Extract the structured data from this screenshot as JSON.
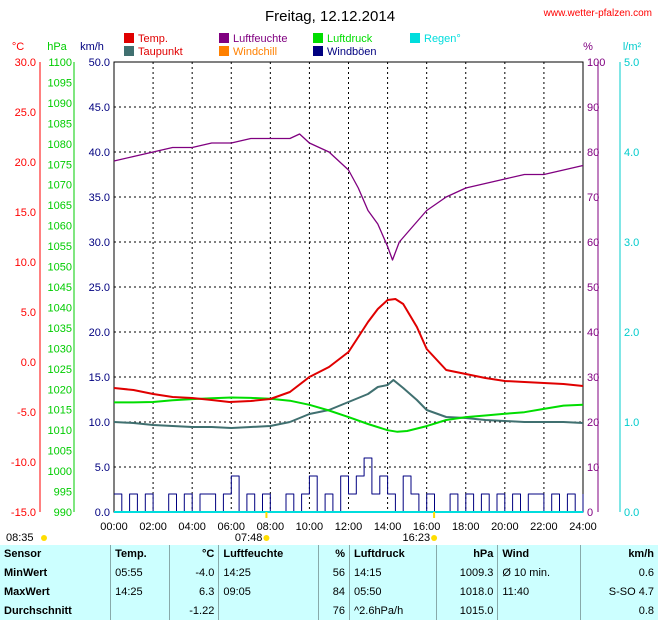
{
  "title": "Freitag, 12.12.2014",
  "site": "www.wetter-pfalzen.com",
  "colors": {
    "temp": "#e00000",
    "humidity": "#800080",
    "pressure": "#00dd00",
    "rain": "#00dddd",
    "dewpoint": "#407070",
    "windchill": "#ff8000",
    "gust": "#000080",
    "temp_axis": "#ff0000",
    "pressure_axis": "#00cc00",
    "speed_axis": "#000080",
    "hum_axis": "#800080",
    "rain_axis": "#00cccc"
  },
  "axes": {
    "temp_unit": "°C",
    "pressure_unit": "hPa",
    "speed_unit": "km/h",
    "hum_unit": "%",
    "rain_unit": "l/m²",
    "temp_ticks": [
      "30.0",
      "25.0",
      "20.0",
      "15.0",
      "10.0",
      "5.0",
      "0.0",
      "-5.0",
      "-10.0",
      "-15.0"
    ],
    "pressure_ticks": [
      "1100",
      "1095",
      "1090",
      "1085",
      "1080",
      "1075",
      "1070",
      "1065",
      "1060",
      "1055",
      "1050",
      "1045",
      "1040",
      "1035",
      "1030",
      "1025",
      "1020",
      "1015",
      "1010",
      "1005",
      "1000",
      "995",
      "990"
    ],
    "speed_ticks": [
      "50.0",
      "45.0",
      "40.0",
      "35.0",
      "30.0",
      "25.0",
      "20.0",
      "15.0",
      "10.0",
      "5.0",
      "0.0"
    ],
    "hum_ticks": [
      "100",
      "90",
      "80",
      "70",
      "60",
      "50",
      "40",
      "30",
      "20",
      "10",
      "0"
    ],
    "rain_ticks": [
      "5.0",
      "4.0",
      "3.0",
      "2.0",
      "1.0",
      "0.0"
    ],
    "time_ticks": [
      "00:00",
      "02:00",
      "04:00",
      "06:00",
      "08:00",
      "10:00",
      "12:00",
      "14:00",
      "16:00",
      "18:00",
      "20:00",
      "22:00",
      "24:00"
    ]
  },
  "legend": [
    {
      "label": "Temp.",
      "key": "temp"
    },
    {
      "label": "Luftfeuchte",
      "key": "humidity"
    },
    {
      "label": "Luftdruck",
      "key": "pressure"
    },
    {
      "label": "Regen°",
      "key": "rain"
    },
    {
      "label": "Taupunkt",
      "key": "dewpoint"
    },
    {
      "label": "Windchill",
      "key": "windchill"
    },
    {
      "label": "Windböen",
      "key": "gust"
    }
  ],
  "sun_markers": [
    {
      "time": "08:35",
      "hour": 8.58
    },
    {
      "time": "07:48",
      "hour": 7.8
    },
    {
      "time": "16:23",
      "hour": 16.38
    }
  ],
  "chart_data": {
    "type": "line",
    "x_unit": "hour",
    "xlim": [
      0,
      24
    ],
    "temp_ylim": [
      -15,
      30
    ],
    "pressure_ylim": [
      990,
      1100
    ],
    "speed_ylim": [
      0,
      50
    ],
    "humidity_ylim": [
      0,
      100
    ],
    "rain_ylim": [
      0,
      5
    ],
    "series": [
      {
        "name": "Temp.",
        "axis": "temp",
        "color_key": "temp",
        "x": [
          0,
          1,
          2,
          3,
          4,
          5,
          5.9,
          7,
          8,
          9,
          10,
          11,
          12,
          12.5,
          13,
          13.5,
          14,
          14.4,
          14.8,
          15.5,
          16,
          17,
          18,
          19,
          20,
          21,
          22,
          23,
          24
        ],
        "y": [
          -2.6,
          -2.8,
          -3.2,
          -3.5,
          -3.6,
          -3.8,
          -4.0,
          -3.9,
          -3.7,
          -3.0,
          -1.5,
          -0.5,
          1.0,
          2.5,
          4.0,
          5.3,
          6.2,
          6.3,
          5.8,
          3.5,
          1.3,
          -0.8,
          -1.2,
          -1.6,
          -1.9,
          -2.0,
          -2.1,
          -2.2,
          -2.4
        ]
      },
      {
        "name": "Taupunkt",
        "axis": "temp",
        "color_key": "dewpoint",
        "x": [
          0,
          1,
          2,
          3,
          4,
          5,
          6,
          7,
          8,
          9,
          10,
          11,
          12,
          13,
          13.5,
          14,
          14.3,
          14.8,
          15.5,
          16,
          17,
          18,
          19,
          20,
          21,
          22,
          23,
          24
        ],
        "y": [
          -6.0,
          -6.1,
          -6.3,
          -6.4,
          -6.5,
          -6.5,
          -6.6,
          -6.5,
          -6.4,
          -6.0,
          -5.2,
          -4.8,
          -4.0,
          -3.2,
          -2.5,
          -2.3,
          -1.8,
          -2.6,
          -3.8,
          -4.8,
          -5.5,
          -5.6,
          -5.8,
          -5.9,
          -6.0,
          -6.0,
          -6.0,
          -6.1
        ]
      },
      {
        "name": "Luftfeuchte",
        "axis": "humidity",
        "color_key": "humidity",
        "x": [
          0,
          1,
          2,
          3,
          4,
          5,
          6,
          7,
          8,
          9,
          9.5,
          10,
          11,
          12,
          12.5,
          13,
          13.5,
          14,
          14.25,
          14.6,
          15.2,
          16,
          17,
          18,
          19,
          20,
          21,
          22,
          23,
          24
        ],
        "y": [
          78,
          79,
          80,
          81,
          81,
          82,
          82,
          83,
          83,
          83,
          84,
          82,
          80,
          76,
          72,
          67,
          64,
          59,
          56,
          60,
          63,
          67,
          70,
          72,
          73,
          74,
          75,
          75,
          76,
          77
        ]
      },
      {
        "name": "Luftdruck",
        "axis": "pressure",
        "color_key": "pressure",
        "x": [
          0,
          1,
          2,
          3,
          4,
          5,
          6,
          7,
          8,
          9,
          10,
          11,
          12,
          13,
          14,
          14.5,
          15,
          16,
          17,
          18,
          19,
          20,
          21,
          22,
          23,
          24
        ],
        "y": [
          1016.8,
          1016.8,
          1016.9,
          1017.3,
          1017.6,
          1017.8,
          1018.0,
          1017.9,
          1017.7,
          1017.2,
          1016.2,
          1014.8,
          1013.2,
          1011.5,
          1010.0,
          1009.6,
          1009.8,
          1011.0,
          1012.5,
          1013.2,
          1013.6,
          1014.0,
          1014.4,
          1015.2,
          1016.0,
          1016.2
        ]
      },
      {
        "name": "Windböen",
        "axis": "speed",
        "color_key": "gust",
        "x": [
          0,
          0.4,
          0.8,
          1.2,
          1.6,
          2,
          2.4,
          2.8,
          3.2,
          3.6,
          4,
          4.4,
          4.8,
          5.2,
          5.6,
          6,
          6.4,
          6.8,
          7.2,
          7.6,
          8,
          8.4,
          8.8,
          9.2,
          9.6,
          10,
          10.4,
          10.8,
          11.2,
          11.6,
          12,
          12.4,
          12.8,
          13.2,
          13.6,
          14,
          14.4,
          14.8,
          15.2,
          15.6,
          16,
          16.4,
          16.8,
          17.2,
          17.6,
          18,
          18.4,
          18.8,
          19.2,
          19.6,
          20,
          20.4,
          20.8,
          21.2,
          21.6,
          22,
          22.4,
          22.8,
          23.2,
          23.6,
          24
        ],
        "y": [
          2,
          0,
          2,
          0,
          2,
          0,
          0,
          2,
          0,
          2,
          0,
          2,
          2,
          0,
          2,
          4,
          0,
          2,
          0,
          2,
          0,
          0,
          2,
          0,
          2,
          4,
          0,
          2,
          0,
          4,
          2,
          4,
          6,
          2,
          4,
          2,
          0,
          4,
          2,
          0,
          2,
          0,
          0,
          2,
          0,
          2,
          0,
          2,
          0,
          2,
          0,
          2,
          0,
          2,
          2,
          0,
          2,
          0,
          2,
          0,
          2
        ]
      },
      {
        "name": "Regen°",
        "axis": "rain",
        "color_key": "rain",
        "x": [
          0,
          24
        ],
        "y": [
          0,
          0
        ]
      }
    ]
  },
  "summary": {
    "headers": [
      "Sensor",
      "Temp.",
      "°C",
      "Luftfeuchte",
      "%",
      "Luftdruck",
      "hPa",
      "Wind",
      "km/h"
    ],
    "rows": [
      [
        "MinWert",
        "05:55",
        "-4.0",
        "14:25",
        "56",
        "14:15",
        "1009.3",
        "Ø 10 min.",
        "0.6"
      ],
      [
        "MaxWert",
        "14:25",
        "6.3",
        "09:05",
        "84",
        "05:50",
        "1018.0",
        "11:40",
        "S-SO 4.7"
      ],
      [
        "Durchschnitt",
        "",
        "-1.22",
        "",
        "76",
        "^2.6hPa/h",
        "1015.0",
        "",
        "0.8"
      ]
    ]
  }
}
